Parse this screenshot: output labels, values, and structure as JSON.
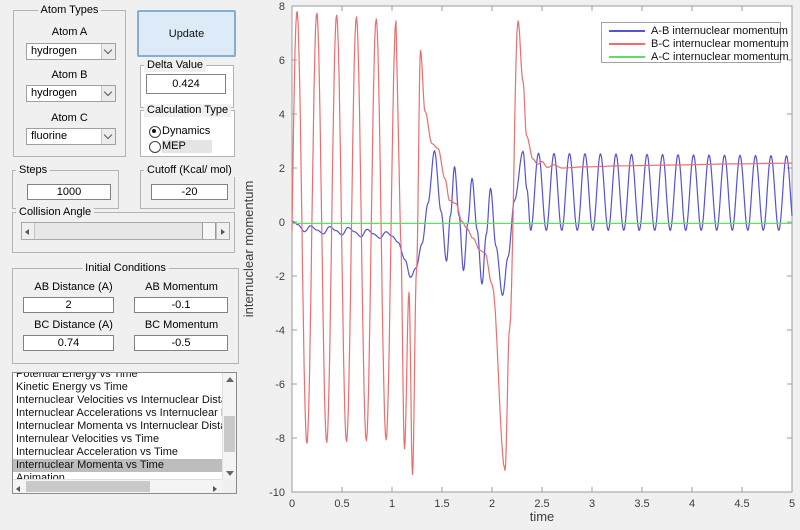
{
  "colors": {
    "figure_bg": "#f0f0f0",
    "update_fill": "#dcebf7",
    "update_border": "#84aed0",
    "list_selection": "#bdbdbd",
    "axis_gray": "#9c9c9c"
  },
  "icons": {
    "dropdown": "chevron-down-icon",
    "scroll_up": "chevron-up-icon",
    "scroll_down": "chevron-down-icon",
    "scroll_left": "chevron-left-icon",
    "scroll_right": "chevron-right-icon",
    "radio_selected": "radio-dot-icon"
  },
  "ui": {
    "atom_types": {
      "title": "Atom Types",
      "atom_a_label": "Atom A",
      "atom_a_value": "hydrogen",
      "atom_b_label": "Atom B",
      "atom_b_value": "hydrogen",
      "atom_c_label": "Atom C",
      "atom_c_value": "fluorine"
    },
    "update_label": "Update",
    "delta": {
      "title": "Delta Value",
      "value": "0.424"
    },
    "calc_type": {
      "title": "Calculation Type",
      "options": [
        {
          "label": "Dynamics",
          "selected": true
        },
        {
          "label": "MEP",
          "selected": false
        }
      ]
    },
    "steps": {
      "title": "Steps",
      "value": "1000"
    },
    "cutoff": {
      "title": "Cutoff (Kcal/ mol)",
      "value": "-20"
    },
    "collision": {
      "title": "Collision Angle"
    },
    "initial": {
      "title": "Initial Conditions",
      "ab_distance_label": "AB Distance (A)",
      "ab_distance": "2",
      "ab_momentum_label": "AB Momentum",
      "ab_momentum": "-0.1",
      "bc_distance_label": "BC Distance (A)",
      "bc_distance": "0.74",
      "bc_momentum_label": "BC Momentum",
      "bc_momentum": "-0.5"
    },
    "plot_list": {
      "selected_index": 7,
      "items": [
        "Potential Energy vs Time",
        "Kinetic Energy vs Time",
        "Internuclear Velocities vs Internuclear Distance",
        "Internuclear Accelerations vs Internuclear Distance",
        "Internuclear Momenta vs Internuclear Distance",
        "Internulear Velocities vs Time",
        "Internuclear Acceleration vs Time",
        "Internuclear Momenta vs Time",
        "Animation"
      ]
    }
  },
  "chart_data": {
    "type": "line",
    "title": "",
    "xlabel": "time",
    "ylabel": "internuclear momentum",
    "xlim": [
      0,
      5
    ],
    "ylim": [
      -10,
      8
    ],
    "xticks": [
      0,
      0.5,
      1,
      1.5,
      2,
      2.5,
      3,
      3.5,
      4,
      4.5,
      5
    ],
    "yticks": [
      -10,
      -8,
      -6,
      -4,
      -2,
      0,
      2,
      4,
      6,
      8
    ],
    "grid": false,
    "legend_position": "northeast",
    "series": [
      {
        "name": "A-B internuclear momentum",
        "color": "#5353d6",
        "segments": [
          {
            "type": "cosine_points",
            "points": [
              [
                0,
                0.03
              ],
              [
                0.06,
                -0.1
              ],
              [
                0.125,
                -0.36
              ],
              [
                0.185,
                -0.14
              ],
              [
                0.25,
                -0.3
              ],
              [
                0.315,
                -0.44
              ],
              [
                0.375,
                -0.17
              ],
              [
                0.44,
                -0.32
              ],
              [
                0.5,
                -0.48
              ],
              [
                0.56,
                -0.2
              ],
              [
                0.625,
                -0.36
              ],
              [
                0.69,
                -0.55
              ],
              [
                0.75,
                -0.27
              ],
              [
                0.815,
                -0.44
              ],
              [
                0.88,
                -0.6
              ],
              [
                0.94,
                -0.36
              ],
              [
                1.0,
                -0.52
              ],
              [
                1.06,
                -0.75
              ],
              [
                1.13,
                -1.4
              ],
              [
                1.185,
                -2.05
              ],
              [
                1.24,
                -1.7
              ],
              [
                1.3,
                -0.8
              ],
              [
                1.36,
                0.7
              ],
              [
                1.425,
                2.64
              ],
              [
                1.49,
                0.4
              ],
              [
                1.545,
                -1.45
              ],
              [
                1.585,
                0.25
              ],
              [
                1.625,
                2.05
              ],
              [
                1.67,
                0.25
              ],
              [
                1.715,
                -1.8
              ],
              [
                1.758,
                -0.05
              ],
              [
                1.8,
                1.62
              ],
              [
                1.852,
                -0.3
              ],
              [
                1.9,
                -2.3
              ],
              [
                1.943,
                -0.45
              ],
              [
                1.985,
                1.25
              ],
              [
                2.04,
                -0.9
              ],
              [
                2.105,
                -2.72
              ],
              [
                2.16,
                -1.3
              ],
              [
                2.225,
                0.8
              ],
              [
                2.31,
                2.62
              ],
              [
                2.35,
                1.2
              ],
              [
                2.3875,
                -0.31
              ]
            ]
          },
          {
            "type": "sine",
            "t0": 2.3875,
            "t1": 5.0,
            "period": 0.155,
            "peak_at": 2.465,
            "center": [
              1.12,
              1.07
            ],
            "amp": [
              1.43,
              1.38
            ]
          }
        ]
      },
      {
        "name": "B-C internuclear momentum",
        "color": "#ec6e6e",
        "segments": [
          {
            "type": "sine",
            "t0": 0.0,
            "t1": 1.04,
            "period": 0.198,
            "peak_at": 0.05,
            "center": [
              -0.2,
              -0.3
            ],
            "amp": [
              8.05,
              7.75
            ]
          },
          {
            "type": "cosine_points",
            "points": [
              [
                1.085,
                -0.5
              ],
              [
                1.125,
                -8.4
              ],
              [
                1.17,
                -2.6
              ],
              [
                1.205,
                -9.35
              ],
              [
                1.245,
                -1.8
              ],
              [
                1.285,
                6.35
              ],
              [
                1.33,
                4.1
              ],
              [
                1.4,
                2.9
              ],
              [
                1.46,
                2.72
              ],
              [
                1.53,
                1.6
              ],
              [
                1.575,
                0.8
              ],
              [
                1.64,
                0.68
              ],
              [
                1.7,
                0.02
              ],
              [
                1.745,
                -0.22
              ],
              [
                1.81,
                -0.6
              ],
              [
                1.88,
                -1.05
              ],
              [
                1.93,
                -1.15
              ],
              [
                2.0,
                -2.3
              ],
              [
                2.13,
                -9.2
              ],
              [
                2.175,
                -4.0
              ],
              [
                2.26,
                7.45
              ],
              [
                2.31,
                5.2
              ],
              [
                2.345,
                3.2
              ],
              [
                2.41,
                2.33
              ],
              [
                2.455,
                2.14
              ],
              [
                2.5,
                2.24
              ],
              [
                2.555,
                2.02
              ],
              [
                2.615,
                2.12
              ],
              [
                2.7,
                2.0
              ],
              [
                2.9,
                2.04
              ],
              [
                3.3,
                2.08
              ],
              [
                3.8,
                2.11
              ],
              [
                4.4,
                2.15
              ],
              [
                5.0,
                2.18
              ]
            ]
          }
        ]
      },
      {
        "name": "A-C internuclear momentum",
        "color": "#63dc63",
        "segments": [
          {
            "type": "cosine_points",
            "points": [
              [
                0,
                -0.05
              ],
              [
                5,
                -0.05
              ]
            ]
          }
        ]
      }
    ]
  }
}
